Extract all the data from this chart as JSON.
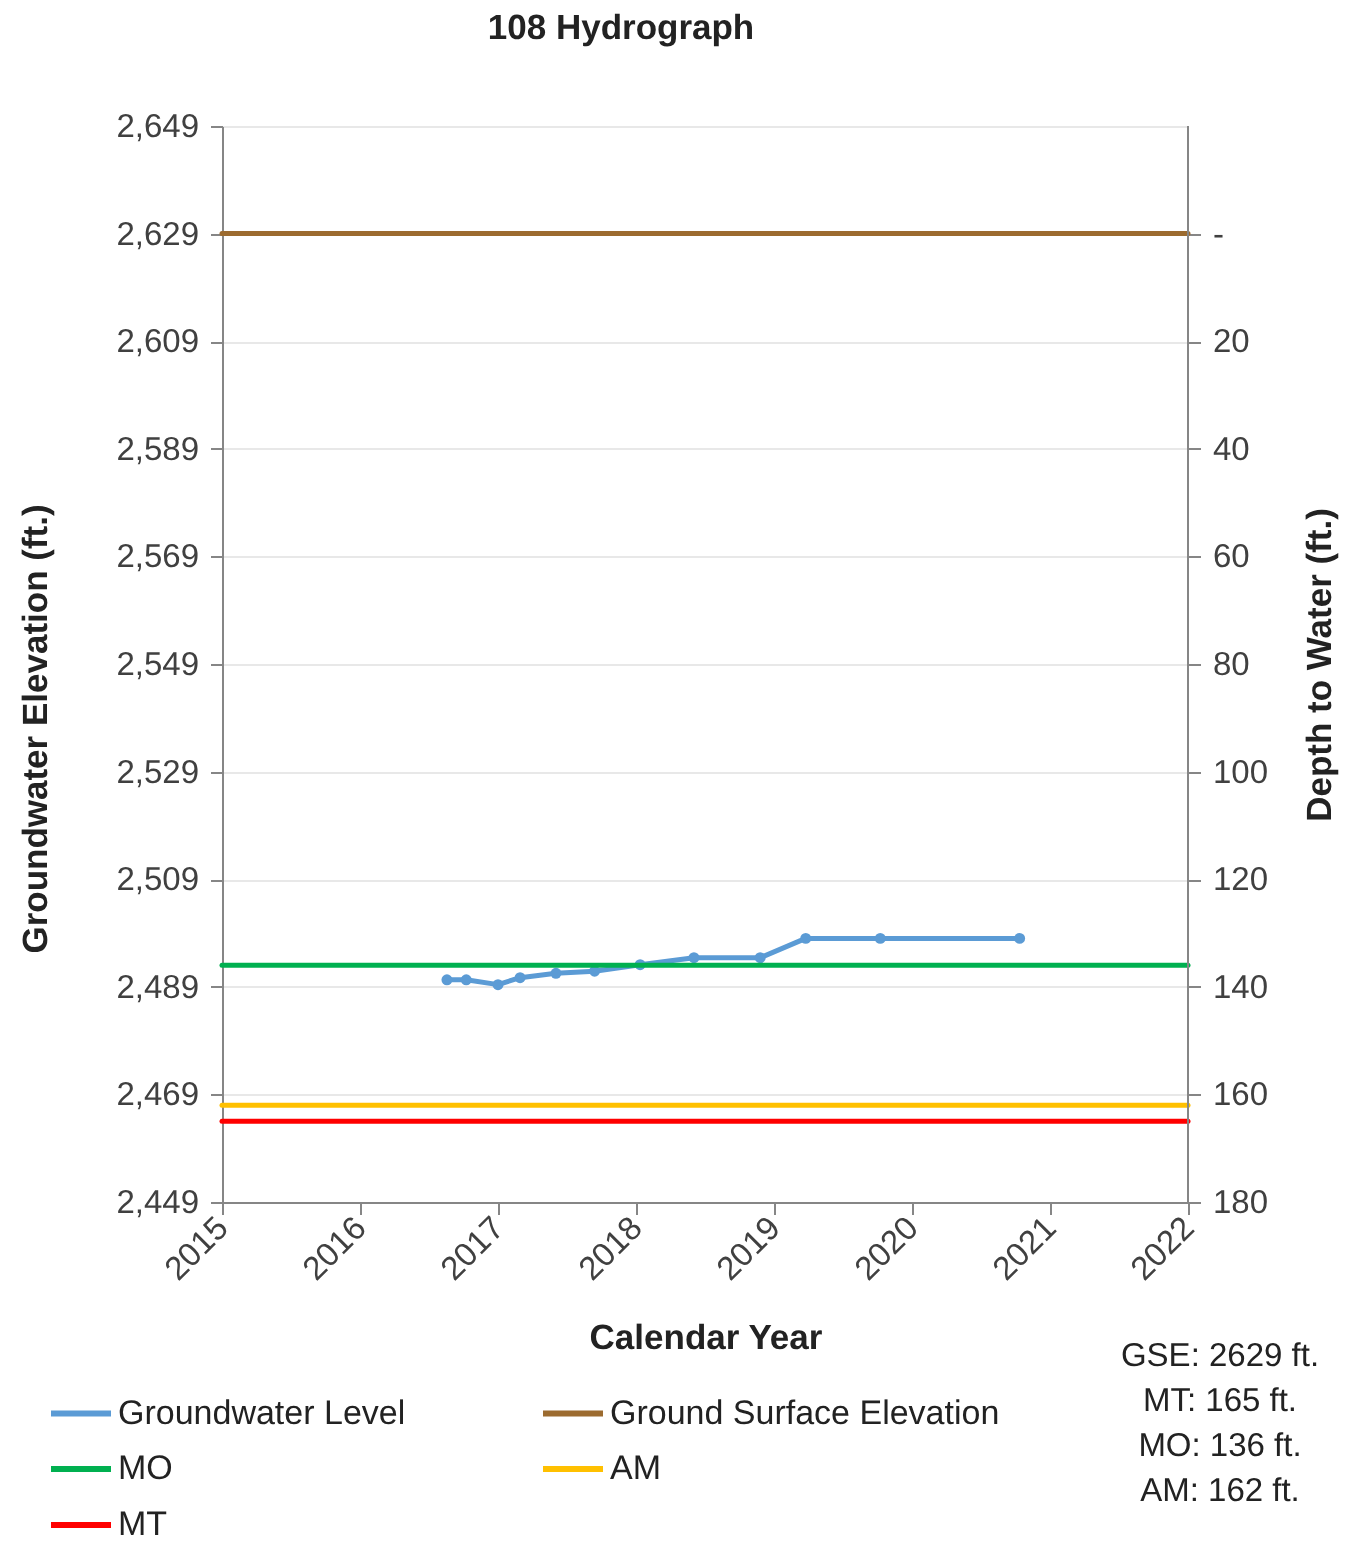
{
  "chart_data": {
    "type": "line",
    "title": "108 Hydrograph",
    "xlabel": "Calendar Year",
    "ylabel": "Groundwater Elevation (ft.)",
    "y2label": "Depth to Water (ft.)",
    "xlim": [
      2015,
      2022
    ],
    "xticks": [
      2015,
      2016,
      2017,
      2018,
      2019,
      2020,
      2021,
      2022
    ],
    "ylim": [
      2449,
      2649
    ],
    "yticks": [
      {
        "value": 2449,
        "label": "2,449"
      },
      {
        "value": 2469,
        "label": "2,469"
      },
      {
        "value": 2489,
        "label": "2,489"
      },
      {
        "value": 2509,
        "label": "2,509"
      },
      {
        "value": 2529,
        "label": "2,529"
      },
      {
        "value": 2549,
        "label": "2,549"
      },
      {
        "value": 2569,
        "label": "2,569"
      },
      {
        "value": 2589,
        "label": "2,589"
      },
      {
        "value": 2609,
        "label": "2,609"
      },
      {
        "value": 2629,
        "label": "2,629"
      },
      {
        "value": 2649,
        "label": "2,649"
      }
    ],
    "y2lim": [
      180,
      -20
    ],
    "y2ticks": [
      {
        "value": 0,
        "label": "-"
      },
      20,
      40,
      60,
      80,
      100,
      120,
      140,
      160,
      180
    ],
    "grid": "y",
    "legend": "bottom",
    "series": [
      {
        "name": "Groundwater Level",
        "color": "#5b9bd5",
        "marker": "circle",
        "x": [
          2016.63,
          2016.77,
          2017.0,
          2017.16,
          2017.42,
          2017.7,
          2018.03,
          2018.42,
          2018.9,
          2019.23,
          2019.77,
          2020.78
        ],
        "values": [
          2490.3,
          2490.3,
          2489.4,
          2490.7,
          2491.5,
          2491.9,
          2493.1,
          2494.4,
          2494.4,
          2498,
          2498,
          2498
        ]
      },
      {
        "name": "Ground Surface Elevation",
        "color": "#9c6b2f",
        "x": [
          2015,
          2022
        ],
        "values": [
          2629,
          2629
        ]
      },
      {
        "name": "MO",
        "color": "#00b050",
        "x": [
          2015,
          2022
        ],
        "values": [
          2493,
          2493
        ]
      },
      {
        "name": "AM",
        "color": "#ffc000",
        "x": [
          2015,
          2022
        ],
        "values": [
          2467,
          2467
        ]
      },
      {
        "name": "MT",
        "color": "#ff0000",
        "x": [
          2015,
          2022
        ],
        "values": [
          2464,
          2464
        ]
      }
    ],
    "annotations": [
      "GSE: 2629 ft.",
      "MT: 165 ft.",
      "MO: 136 ft.",
      "AM: 162 ft."
    ]
  }
}
